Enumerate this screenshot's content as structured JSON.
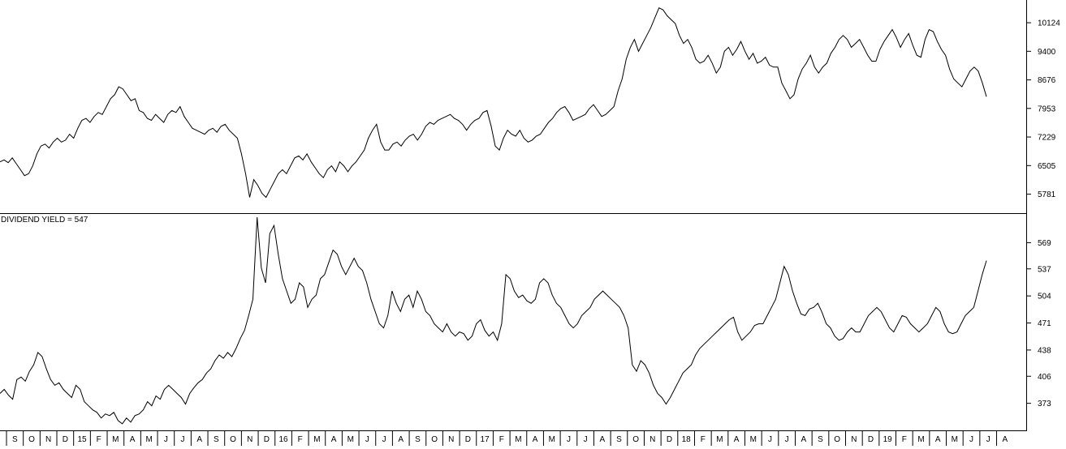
{
  "chart_data": [
    {
      "type": "line",
      "title": "",
      "ylabel": "",
      "ylim": [
        5300,
        10700
      ],
      "y_ticks": [
        "10124",
        "9400",
        "8676",
        "7953",
        "7229",
        "6505",
        "5781"
      ],
      "series": [
        {
          "color": "#000000",
          "values": [
            6600,
            6650,
            6580,
            6700,
            6550,
            6400,
            6250,
            6300,
            6500,
            6800,
            7000,
            7050,
            6950,
            7100,
            7200,
            7100,
            7150,
            7300,
            7200,
            7450,
            7650,
            7700,
            7600,
            7750,
            7850,
            7800,
            8000,
            8200,
            8300,
            8500,
            8450,
            8300,
            8150,
            8200,
            7900,
            7850,
            7700,
            7650,
            7800,
            7700,
            7600,
            7800,
            7900,
            7850,
            8000,
            7750,
            7600,
            7450,
            7400,
            7350,
            7300,
            7400,
            7450,
            7350,
            7500,
            7550,
            7400,
            7300,
            7200,
            6800,
            6300,
            5700,
            6150,
            6000,
            5800,
            5700,
            5900,
            6100,
            6300,
            6400,
            6300,
            6500,
            6700,
            6750,
            6650,
            6800,
            6600,
            6450,
            6300,
            6200,
            6400,
            6500,
            6350,
            6600,
            6500,
            6350,
            6500,
            6600,
            6750,
            6900,
            7200,
            7400,
            7550,
            7100,
            6900,
            6900,
            7050,
            7100,
            7000,
            7150,
            7250,
            7300,
            7150,
            7300,
            7500,
            7600,
            7550,
            7650,
            7700,
            7750,
            7800,
            7700,
            7650,
            7550,
            7400,
            7550,
            7650,
            7700,
            7850,
            7900,
            7500,
            7000,
            6900,
            7200,
            7400,
            7300,
            7250,
            7400,
            7200,
            7100,
            7150,
            7250,
            7300,
            7450,
            7600,
            7700,
            7850,
            7950,
            8000,
            7850,
            7650,
            7700,
            7750,
            7800,
            7950,
            8050,
            7900,
            7750,
            7800,
            7900,
            8000,
            8400,
            8700,
            9200,
            9500,
            9700,
            9400,
            9600,
            9800,
            10000,
            10250,
            10500,
            10450,
            10300,
            10200,
            10100,
            9800,
            9600,
            9700,
            9500,
            9200,
            9100,
            9150,
            9300,
            9100,
            8850,
            9000,
            9400,
            9500,
            9300,
            9450,
            9650,
            9400,
            9200,
            9350,
            9100,
            9150,
            9250,
            9050,
            9000,
            9000,
            8600,
            8400,
            8200,
            8300,
            8700,
            8950,
            9100,
            9300,
            9000,
            8850,
            9000,
            9100,
            9350,
            9500,
            9700,
            9800,
            9700,
            9500,
            9600,
            9700,
            9500,
            9300,
            9150,
            9150,
            9450,
            9650,
            9800,
            9950,
            9750,
            9500,
            9700,
            9850,
            9550,
            9300,
            9250,
            9700,
            9950,
            9900,
            9650,
            9450,
            9300,
            8950,
            8700,
            8600,
            8500,
            8700,
            8900,
            9000,
            8900,
            8600,
            8250
          ]
        }
      ]
    },
    {
      "type": "line",
      "title": "DIVIDEND YIELD = 547",
      "ylabel": "",
      "ylim": [
        340,
        604
      ],
      "y_ticks": [
        "569",
        "537",
        "504",
        "471",
        "438",
        "406",
        "373"
      ],
      "series": [
        {
          "color": "#000000",
          "values": [
            385,
            390,
            383,
            378,
            402,
            405,
            400,
            412,
            420,
            435,
            430,
            415,
            402,
            395,
            398,
            390,
            385,
            380,
            395,
            390,
            375,
            370,
            365,
            362,
            355,
            360,
            358,
            362,
            352,
            348,
            355,
            350,
            358,
            360,
            365,
            375,
            370,
            382,
            378,
            390,
            395,
            390,
            385,
            380,
            372,
            385,
            392,
            398,
            402,
            410,
            415,
            425,
            432,
            428,
            435,
            430,
            440,
            452,
            462,
            480,
            500,
            600,
            538,
            520,
            580,
            590,
            555,
            525,
            510,
            495,
            500,
            520,
            515,
            490,
            500,
            505,
            525,
            530,
            545,
            560,
            555,
            540,
            530,
            540,
            550,
            540,
            535,
            520,
            500,
            485,
            470,
            465,
            480,
            510,
            495,
            485,
            500,
            505,
            490,
            510,
            500,
            485,
            480,
            470,
            465,
            460,
            470,
            460,
            455,
            460,
            458,
            450,
            455,
            470,
            475,
            462,
            455,
            460,
            450,
            470,
            530,
            525,
            510,
            502,
            505,
            498,
            495,
            500,
            520,
            525,
            520,
            505,
            495,
            490,
            480,
            470,
            465,
            470,
            480,
            485,
            490,
            500,
            505,
            510,
            505,
            500,
            495,
            490,
            480,
            465,
            420,
            412,
            425,
            420,
            410,
            395,
            385,
            380,
            372,
            380,
            390,
            400,
            410,
            415,
            420,
            432,
            440,
            445,
            450,
            455,
            460,
            465,
            470,
            475,
            478,
            460,
            450,
            455,
            460,
            468,
            470,
            470,
            480,
            490,
            500,
            520,
            540,
            530,
            510,
            495,
            482,
            480,
            488,
            490,
            495,
            484,
            470,
            465,
            455,
            450,
            452,
            460,
            465,
            460,
            460,
            470,
            480,
            485,
            490,
            485,
            475,
            465,
            460,
            470,
            480,
            478,
            470,
            465,
            460,
            465,
            470,
            480,
            490,
            485,
            470,
            460,
            458,
            460,
            470,
            480,
            485,
            490,
            510,
            530,
            547
          ]
        }
      ]
    }
  ],
  "x_axis": {
    "labels": [
      "S",
      "O",
      "N",
      "D",
      "15",
      "F",
      "M",
      "A",
      "M",
      "J",
      "J",
      "A",
      "S",
      "O",
      "N",
      "D",
      "16",
      "F",
      "M",
      "A",
      "M",
      "J",
      "J",
      "A",
      "S",
      "O",
      "N",
      "D",
      "17",
      "F",
      "M",
      "A",
      "M",
      "J",
      "J",
      "A",
      "S",
      "O",
      "N",
      "D",
      "18",
      "F",
      "M",
      "A",
      "M",
      "J",
      "J",
      "A",
      "S",
      "O",
      "N",
      "D",
      "19",
      "F",
      "M",
      "A",
      "M",
      "J",
      "J",
      "A"
    ]
  }
}
